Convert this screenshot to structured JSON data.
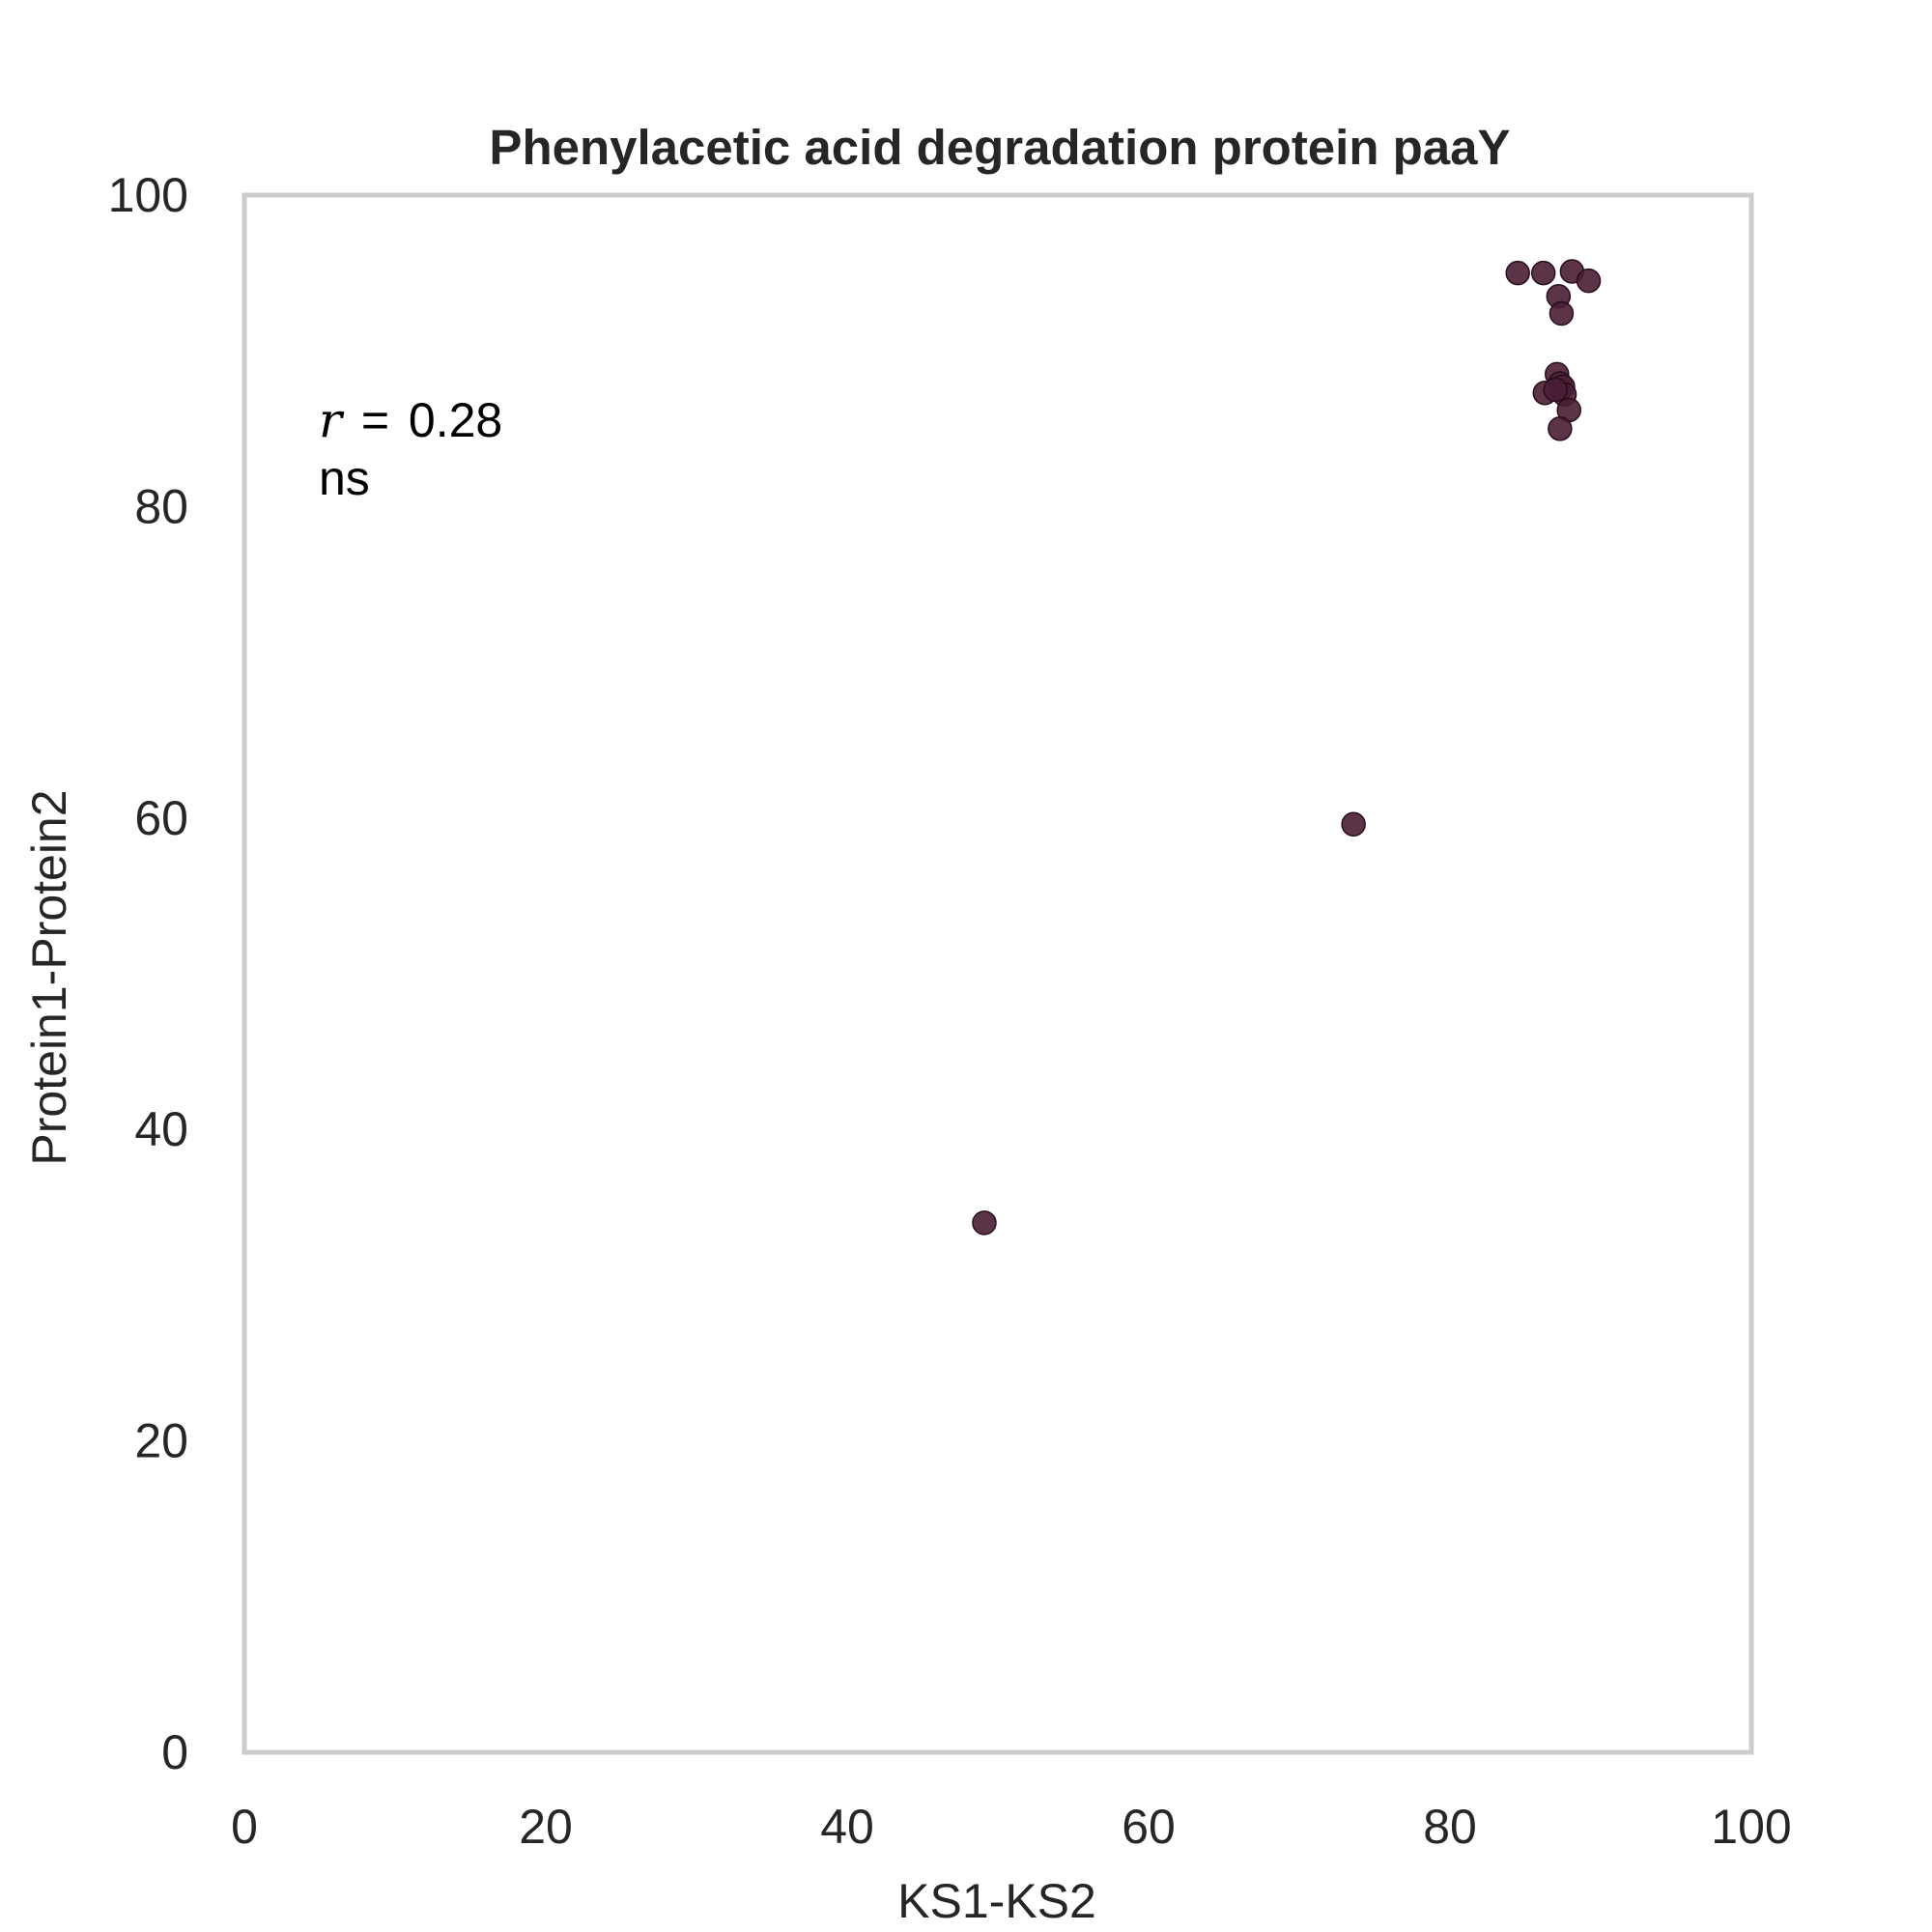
{
  "chart_data": {
    "type": "scatter",
    "title": "Phenylacetic acid degradation protein paaY",
    "xlabel": "KS1-KS2",
    "ylabel": "Protein1-Protein2",
    "xlim": [
      0,
      100
    ],
    "ylim": [
      0,
      100
    ],
    "x_ticks": [
      "0",
      "20",
      "40",
      "60",
      "80",
      "100"
    ],
    "y_ticks": [
      "0",
      "20",
      "40",
      "60",
      "80",
      "100"
    ],
    "grid": false,
    "marker_color": "#4a1e34",
    "frame_color": "#cccccc",
    "annotation": {
      "r_symbol": "r",
      "equals": "=",
      "r_value": "0.28",
      "significance": "ns"
    },
    "points": [
      {
        "x": 49.1,
        "y": 34.0
      },
      {
        "x": 73.6,
        "y": 59.6
      },
      {
        "x": 84.5,
        "y": 95.0
      },
      {
        "x": 86.2,
        "y": 95.0
      },
      {
        "x": 88.1,
        "y": 95.1
      },
      {
        "x": 89.2,
        "y": 94.5
      },
      {
        "x": 87.2,
        "y": 93.5
      },
      {
        "x": 87.4,
        "y": 92.4
      },
      {
        "x": 87.1,
        "y": 88.5
      },
      {
        "x": 87.3,
        "y": 87.9
      },
      {
        "x": 87.5,
        "y": 87.7
      },
      {
        "x": 86.3,
        "y": 87.3
      },
      {
        "x": 87.6,
        "y": 87.2
      },
      {
        "x": 87.0,
        "y": 87.5
      },
      {
        "x": 87.9,
        "y": 86.2
      },
      {
        "x": 87.3,
        "y": 85.0
      }
    ]
  }
}
